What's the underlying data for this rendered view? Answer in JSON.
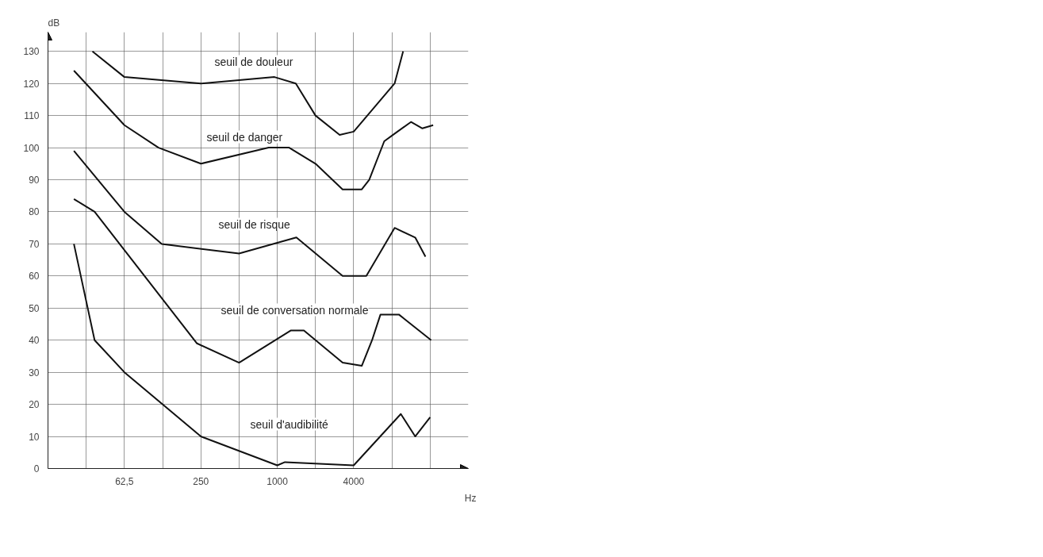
{
  "chart_data": {
    "type": "line",
    "xlabel": "Hz",
    "ylabel": "dB",
    "log": "x",
    "grid": true,
    "marker": "none",
    "line_style": "solid",
    "xlim": [
      15.625,
      32000
    ],
    "ylim": [
      0,
      136
    ],
    "xticks": [
      {
        "value": 31.25,
        "label": null
      },
      {
        "value": 62.5,
        "label": "62,5"
      },
      {
        "value": 125,
        "label": null
      },
      250,
      {
        "value": 500,
        "label": null
      },
      1000,
      {
        "value": 2000,
        "label": null
      },
      4000,
      {
        "value": 8000,
        "label": null
      },
      {
        "value": 16000,
        "label": null
      }
    ],
    "yticks": [
      0,
      10,
      20,
      30,
      40,
      50,
      60,
      70,
      80,
      90,
      100,
      110,
      120,
      130
    ],
    "series": [
      {
        "name": "seuil de douleur",
        "color": "#111111",
        "x": [
          35,
          62.5,
          250,
          950,
          1400,
          2000,
          3100,
          4000,
          8400,
          9800
        ],
        "values": [
          130,
          122,
          120,
          122,
          120,
          110,
          104,
          105,
          120,
          130
        ]
      },
      {
        "name": "seuil de danger",
        "color": "#111111",
        "x": [
          25,
          62.5,
          116,
          250,
          855,
          1240,
          2000,
          3270,
          4630,
          5300,
          6960,
          8170,
          11300,
          13900,
          16900
        ],
        "values": [
          124,
          107,
          100,
          95,
          100,
          100,
          95,
          87,
          87,
          90,
          102,
          104,
          108,
          106,
          107
        ]
      },
      {
        "name": "seuil de risque",
        "color": "#111111",
        "x": [
          25,
          62.5,
          123,
          500,
          1414,
          3270,
          5030,
          8400,
          12200,
          14700
        ],
        "values": [
          99,
          80,
          70,
          67,
          72,
          60,
          60,
          75,
          72,
          66
        ]
      },
      {
        "name": "seuil de conversation normale",
        "color": "#111111",
        "x": [
          25,
          36.4,
          233,
          500,
          1275,
          1620,
          3270,
          4630,
          5580,
          6500,
          9070,
          16300
        ],
        "values": [
          84,
          80,
          39,
          33,
          43,
          43,
          33,
          32,
          40,
          48,
          48,
          40
        ]
      },
      {
        "name": "seuil d'audibilité",
        "color": "#111111",
        "x": [
          25,
          36.4,
          62.5,
          250,
          1000,
          1150,
          4000,
          9400,
          12200,
          16000
        ],
        "values": [
          70,
          40,
          30,
          10,
          1,
          2,
          1,
          17,
          10,
          16
        ]
      }
    ]
  }
}
